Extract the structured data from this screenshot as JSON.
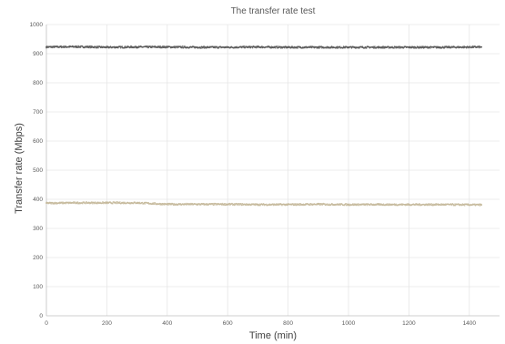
{
  "chart_data": {
    "type": "scatter",
    "title": "The transfer rate test",
    "xlabel": "Time (min)",
    "ylabel": "Transfer rate (Mbps)",
    "xlim": [
      0,
      1500
    ],
    "ylim": [
      0,
      1000
    ],
    "xticks": [
      0,
      200,
      400,
      600,
      800,
      1000,
      1200,
      1400
    ],
    "yticks": [
      0,
      100,
      200,
      300,
      400,
      500,
      600,
      700,
      800,
      900,
      1000
    ],
    "grid": true,
    "legend": "none",
    "series": [
      {
        "color": "#595959",
        "x": [
          0,
          100,
          200,
          300,
          400,
          500,
          600,
          700,
          800,
          900,
          1000,
          1100,
          1200,
          1300,
          1440
        ],
        "values": [
          923,
          924,
          922,
          923,
          923,
          922,
          922,
          923,
          922,
          922,
          922,
          922,
          922,
          922,
          923
        ]
      },
      {
        "color": "#c4b89a",
        "x": [
          0,
          100,
          200,
          300,
          400,
          500,
          600,
          700,
          800,
          900,
          1000,
          1100,
          1200,
          1300,
          1440
        ],
        "values": [
          387,
          388,
          388,
          388,
          383,
          383,
          383,
          382,
          382,
          383,
          382,
          382,
          382,
          382,
          381
        ]
      }
    ]
  }
}
